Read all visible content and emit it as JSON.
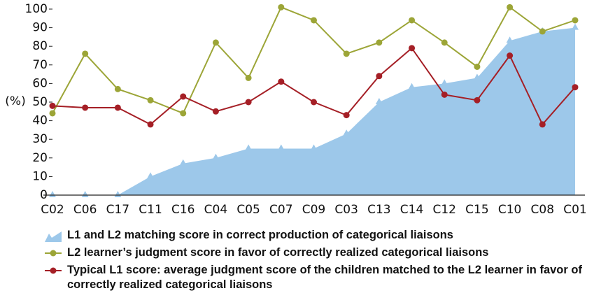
{
  "chart_data": {
    "type": "line",
    "ylabel": "(%)",
    "categories": [
      "C02",
      "C06",
      "C17",
      "C11",
      "C16",
      "C04",
      "C05",
      "C07",
      "C09",
      "C03",
      "C13",
      "C14",
      "C12",
      "C15",
      "C10",
      "C08",
      "C01"
    ],
    "series": [
      {
        "name": "L1 and L2 matching score in correct production of categorical liaisons",
        "kind": "area",
        "color": "#9dc8ea",
        "values": [
          0,
          0,
          0,
          10,
          17,
          20,
          25,
          25,
          25,
          33,
          50,
          58,
          60,
          63,
          83,
          88,
          90
        ]
      },
      {
        "name": "L2 learner’s judgment score in favor of correctly realized categorical liaisons",
        "kind": "line",
        "color": "#9ca537",
        "values": [
          44,
          76,
          57,
          51,
          44,
          82,
          63,
          101,
          94,
          76,
          82,
          94,
          82,
          69,
          101,
          88,
          94
        ]
      },
      {
        "name": "Typical L1 score: average judgment score of the children matched to the L2 learner in favor of correctly realized categorical liaisons",
        "kind": "line",
        "color": "#a51f26",
        "values": [
          48,
          47,
          47,
          38,
          53,
          45,
          50,
          61,
          50,
          43,
          64,
          79,
          54,
          51,
          75,
          38,
          58
        ]
      }
    ],
    "ylim": [
      0,
      100
    ],
    "yticks": [
      0,
      10,
      20,
      30,
      40,
      50,
      60,
      70,
      80,
      90,
      100
    ]
  }
}
